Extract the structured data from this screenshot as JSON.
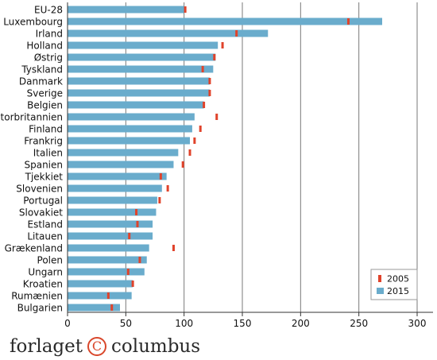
{
  "chart_data": {
    "type": "bar",
    "orientation": "horizontal",
    "categories": [
      "EU-28",
      "Luxembourg",
      "Irland",
      "Holland",
      "Østrig",
      "Tyskland",
      "Danmark",
      "Sverige",
      "Belgien",
      "Storbritannien",
      "Finland",
      "Frankrig",
      "Italien",
      "Spanien",
      "Tjekkiet",
      "Slovenien",
      "Portugal",
      "Slovakiet",
      "Estland",
      "Litauen",
      "Grækenland",
      "Polen",
      "Ungarn",
      "Kroatien",
      "Rumænien",
      "Bulgarien"
    ],
    "series": [
      {
        "name": "2015",
        "kind": "bar",
        "values": [
          100,
          270,
          172,
          129,
          127,
          125,
          122,
          122,
          117,
          109,
          107,
          105,
          95,
          91,
          85,
          81,
          77,
          76,
          73,
          73,
          70,
          68,
          66,
          56,
          55,
          45
        ]
      },
      {
        "name": "2005",
        "kind": "marker",
        "values": [
          101,
          241,
          145,
          133,
          126,
          116,
          122,
          122,
          117,
          128,
          114,
          109,
          105,
          99,
          80,
          86,
          79,
          59,
          60,
          53,
          91,
          62,
          52,
          56,
          35,
          38
        ]
      }
    ],
    "xlim": [
      0,
      300
    ],
    "xticks": [
      "0",
      "50",
      "100",
      "150",
      "200",
      "250",
      "300"
    ],
    "grid": "vertical",
    "legend_position": "bottom-right",
    "colors": {
      "bar_2015": "#6aaccc",
      "marker_2005": "#e0432b"
    }
  },
  "footer": {
    "brand_left": "forlaget",
    "brand_symbol": "C",
    "brand_right": "columbus"
  }
}
